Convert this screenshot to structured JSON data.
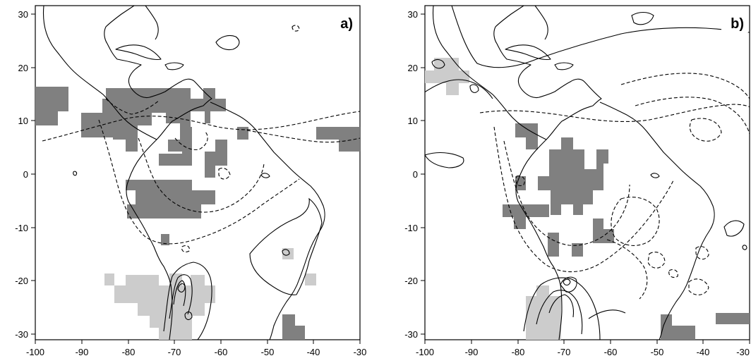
{
  "figure": {
    "colors": {
      "dark_shading": "#808080",
      "light_shading": "#cccccc",
      "lines": "#000000"
    },
    "lon_ticks": [
      "-100",
      "-90",
      "-80",
      "-70",
      "-60",
      "-50",
      "-40",
      "-30"
    ],
    "lat_ticks": [
      "30",
      "20",
      "10",
      "0",
      "-10",
      "-20",
      "-30"
    ],
    "panels": [
      {
        "label": "a)",
        "lon_range": [
          -100,
          -30
        ],
        "lat_range": [
          -31,
          31
        ]
      },
      {
        "label": "b)",
        "lon_range": [
          -100,
          -30
        ],
        "lat_range": [
          -31,
          31
        ]
      }
    ]
  }
}
